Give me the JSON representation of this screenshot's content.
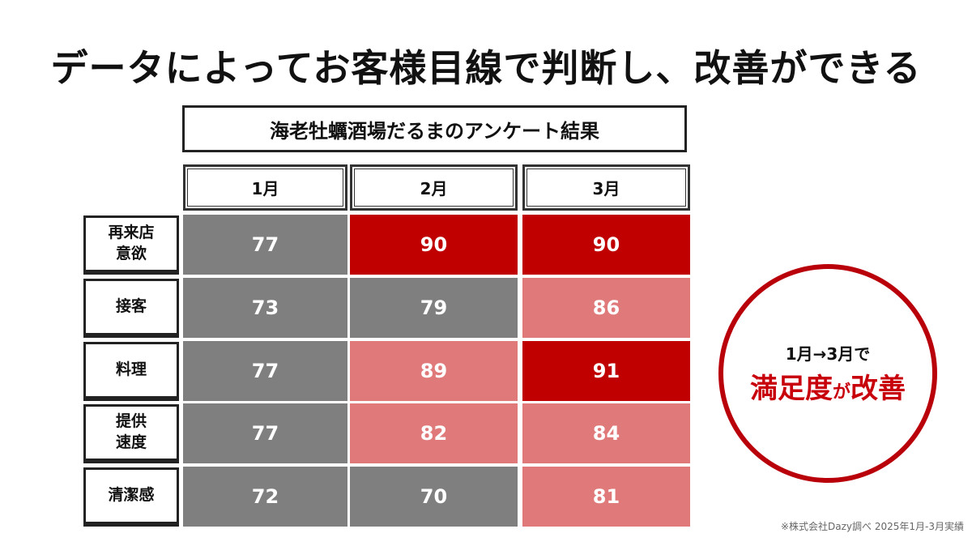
{
  "headline": "データによってお客様目線で判断し、改善ができる",
  "chart_data": {
    "type": "table",
    "title": "海老牡蠣酒場だるまのアンケート結果",
    "columns": [
      "1月",
      "2月",
      "3月"
    ],
    "rows": [
      {
        "label": "再来店\n意欲",
        "values": [
          77,
          90,
          90
        ],
        "levels": [
          "low",
          "high",
          "high"
        ]
      },
      {
        "label": "接客",
        "values": [
          73,
          79,
          86
        ],
        "levels": [
          "low",
          "low",
          "mid"
        ]
      },
      {
        "label": "料理",
        "values": [
          77,
          89,
          91
        ],
        "levels": [
          "low",
          "mid",
          "high"
        ]
      },
      {
        "label": "提供\n速度",
        "values": [
          77,
          82,
          84
        ],
        "levels": [
          "low",
          "mid",
          "mid"
        ]
      },
      {
        "label": "清潔感",
        "values": [
          72,
          70,
          81
        ],
        "levels": [
          "low",
          "low",
          "mid"
        ]
      }
    ],
    "level_colors": {
      "low": "#7f7f7f",
      "mid": "#e07a7a",
      "high": "#c00000"
    }
  },
  "callout": {
    "line1": "1月→3月で",
    "line2_a": "満足度",
    "line2_b": "が",
    "line2_c": "改善"
  },
  "footnote": "※株式会社Dazy調べ 2025年1月-3月実績"
}
